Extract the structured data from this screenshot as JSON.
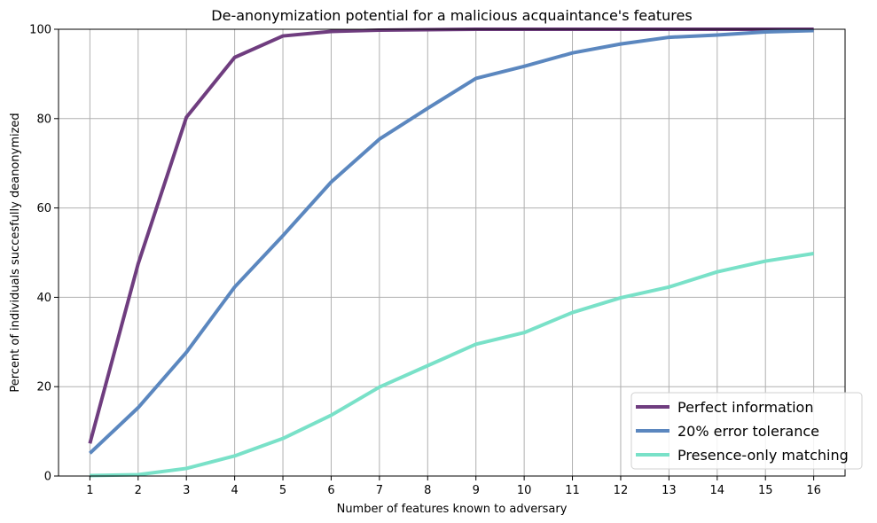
{
  "chart_data": {
    "type": "line",
    "title": "De-anonymization potential for a malicious acquaintance's features",
    "xlabel": "Number of features known to adversary",
    "ylabel": "Percent of individuals succesfully deanonymized",
    "x": [
      1,
      2,
      3,
      4,
      5,
      6,
      7,
      8,
      9,
      10,
      11,
      12,
      13,
      14,
      15,
      16
    ],
    "xlim": [
      0.35,
      16.65
    ],
    "ylim": [
      0,
      100
    ],
    "yticks": [
      0,
      20,
      40,
      60,
      80,
      100
    ],
    "grid": true,
    "legend_position": "lower-right",
    "series": [
      {
        "name": "Perfect information",
        "color": "#6f3d7f",
        "values": [
          7.3,
          47.5,
          80.3,
          93.7,
          98.5,
          99.5,
          99.8,
          99.9,
          100,
          100,
          100,
          100,
          100,
          100,
          100,
          100
        ]
      },
      {
        "name": "20% error tolerance",
        "color": "#5b87bf",
        "values": [
          5.1,
          15.3,
          27.7,
          42.3,
          53.8,
          65.8,
          75.4,
          82.3,
          89.0,
          91.7,
          94.7,
          96.7,
          98.2,
          98.7,
          99.4,
          99.7
        ]
      },
      {
        "name": "Presence-only matching",
        "color": "#79e1c8",
        "values": [
          0.1,
          0.3,
          1.7,
          4.5,
          8.4,
          13.6,
          19.9,
          24.7,
          29.5,
          32.1,
          36.6,
          39.9,
          42.3,
          45.7,
          48.1,
          49.8
        ]
      }
    ]
  }
}
